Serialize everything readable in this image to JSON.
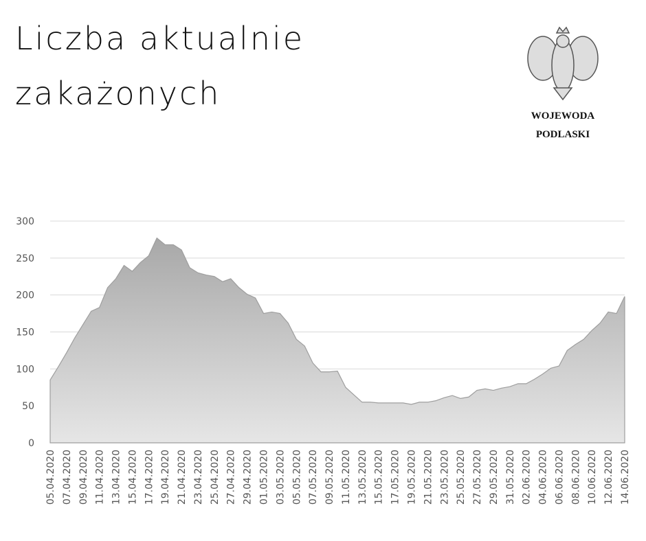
{
  "header": {
    "title_lines": [
      "Liczba aktualnie",
      "zakażonych"
    ],
    "logo_lines": [
      "WOJEWODA",
      "PODLASKI"
    ]
  },
  "chart_data": {
    "type": "area",
    "categories": [
      "05.04.2020",
      null,
      "07.04.2020",
      null,
      "09.04.2020",
      null,
      "11.04.2020",
      null,
      "13.04.2020",
      null,
      "15.04.2020",
      null,
      "17.04.2020",
      null,
      "19.04.2020",
      null,
      "21.04.2020",
      null,
      "23.04.2020",
      null,
      "25.04.2020",
      null,
      "27.04.2020",
      null,
      "29.04.2020",
      null,
      "01.05.2020",
      null,
      "03.05.2020",
      null,
      "05.05.2020",
      null,
      "07.05.2020",
      null,
      "09.05.2020",
      null,
      "11.05.2020",
      null,
      "13.05.2020",
      null,
      "15.05.2020",
      null,
      "17.05.2020",
      null,
      "19.05.2020",
      null,
      "21.05.2020",
      null,
      "23.05.2020",
      null,
      "25.05.2020",
      null,
      "27.05.2020",
      null,
      "29.05.2020",
      null,
      "31.05.2020",
      null,
      "02.06.2020",
      null,
      "04.06.2020",
      null,
      "06.06.2020",
      null,
      "08.06.2020",
      null,
      "10.06.2020",
      null,
      "12.06.2020",
      null,
      "14.06.2020"
    ],
    "values": [
      85,
      103,
      122,
      142,
      160,
      178,
      183,
      210,
      222,
      240,
      232,
      244,
      253,
      277,
      268,
      268,
      261,
      237,
      230,
      227,
      225,
      218,
      222,
      210,
      201,
      196,
      175,
      177,
      175,
      162,
      140,
      131,
      108,
      96,
      96,
      97,
      75,
      65,
      55,
      55,
      54,
      54,
      54,
      54,
      52,
      55,
      55,
      57,
      61,
      64,
      60,
      62,
      71,
      73,
      71,
      74,
      76,
      80,
      80,
      86,
      93,
      101,
      104,
      125,
      133,
      140,
      152,
      162,
      177,
      175,
      198
    ],
    "color": "#9e9e9e",
    "ylim": [
      0,
      300
    ],
    "yticks": [
      0,
      50,
      100,
      150,
      200,
      250,
      300
    ],
    "grid": true
  }
}
